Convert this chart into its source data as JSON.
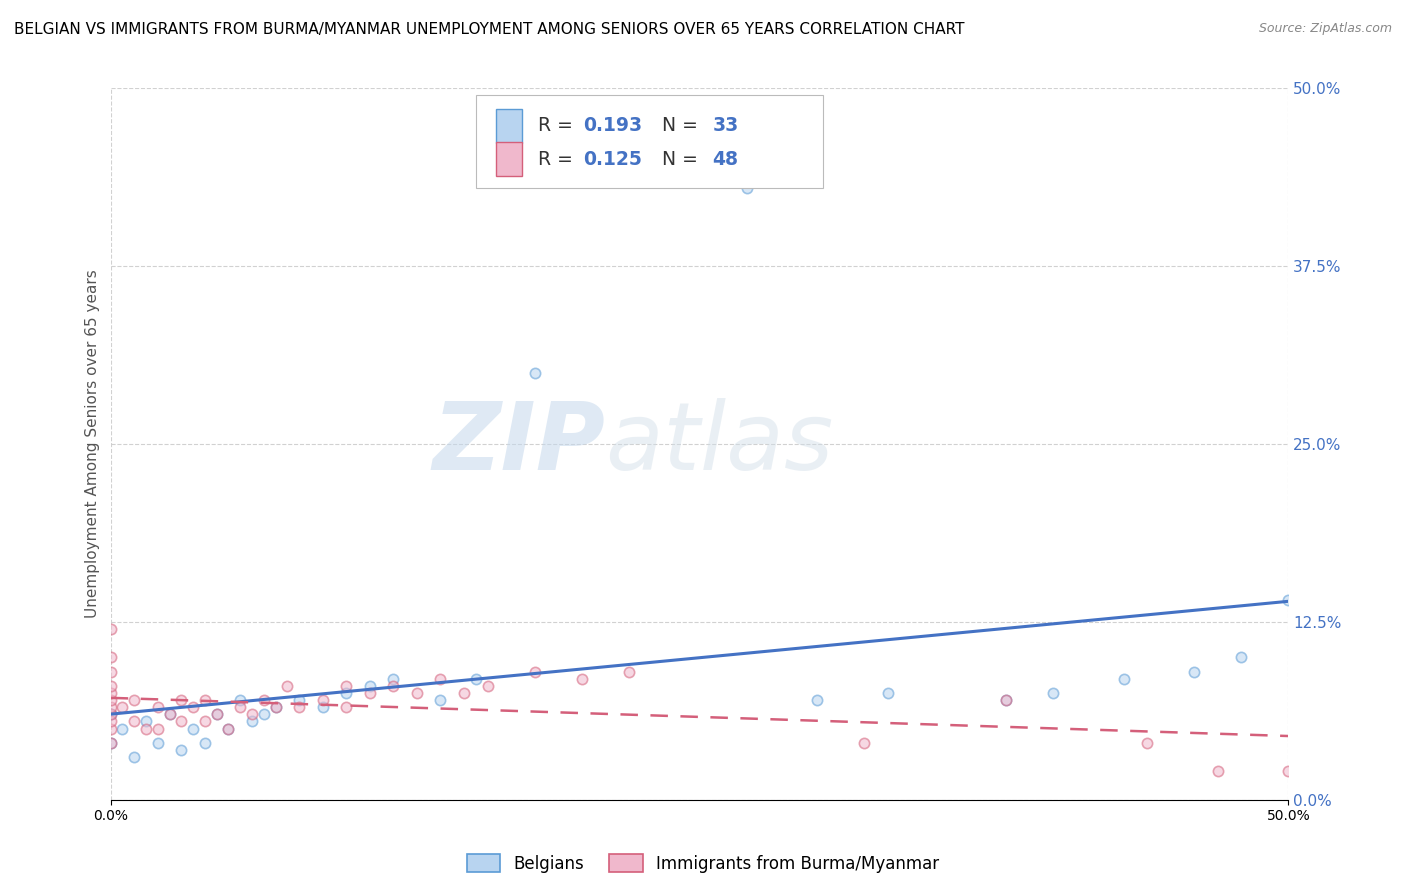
{
  "title": "BELGIAN VS IMMIGRANTS FROM BURMA/MYANMAR UNEMPLOYMENT AMONG SENIORS OVER 65 YEARS CORRELATION CHART",
  "source": "Source: ZipAtlas.com",
  "ylabel": "Unemployment Among Seniors over 65 years",
  "xlim": [
    0.0,
    0.5
  ],
  "ylim": [
    0.0,
    0.5
  ],
  "ytick_values": [
    0.0,
    0.125,
    0.25,
    0.375,
    0.5
  ],
  "ytick_labels": [
    "0.0%",
    "12.5%",
    "25.0%",
    "37.5%",
    "50.0%"
  ],
  "xtick_values": [
    0.0,
    0.5
  ],
  "xtick_labels": [
    "0.0%",
    "50.0%"
  ],
  "watermark_zip": "ZIP",
  "watermark_atlas": "atlas",
  "legend_belgians_label": "Belgians",
  "legend_immigrants_label": "Immigrants from Burma/Myanmar",
  "r_belgians": 0.193,
  "n_belgians": 33,
  "r_immigrants": 0.125,
  "n_immigrants": 48,
  "color_belgians_fill": "#b8d4f0",
  "color_belgians_edge": "#5b9bd5",
  "color_immigrants_fill": "#f0b8cc",
  "color_immigrants_edge": "#d45f7a",
  "color_line_belgians": "#4472c4",
  "color_line_immigrants": "#d45f7a",
  "belgians_x": [
    0.0,
    0.0,
    0.005,
    0.01,
    0.015,
    0.02,
    0.025,
    0.03,
    0.035,
    0.04,
    0.045,
    0.05,
    0.055,
    0.06,
    0.065,
    0.07,
    0.08,
    0.09,
    0.1,
    0.11,
    0.12,
    0.14,
    0.155,
    0.18,
    0.27,
    0.3,
    0.33,
    0.38,
    0.4,
    0.43,
    0.46,
    0.48,
    0.5
  ],
  "belgians_y": [
    0.04,
    0.06,
    0.05,
    0.03,
    0.055,
    0.04,
    0.06,
    0.035,
    0.05,
    0.04,
    0.06,
    0.05,
    0.07,
    0.055,
    0.06,
    0.065,
    0.07,
    0.065,
    0.075,
    0.08,
    0.085,
    0.07,
    0.085,
    0.3,
    0.43,
    0.07,
    0.075,
    0.07,
    0.075,
    0.085,
    0.09,
    0.1,
    0.14
  ],
  "immigrants_x": [
    0.0,
    0.0,
    0.0,
    0.0,
    0.0,
    0.0,
    0.0,
    0.0,
    0.0,
    0.0,
    0.0,
    0.005,
    0.01,
    0.01,
    0.015,
    0.02,
    0.02,
    0.025,
    0.03,
    0.03,
    0.035,
    0.04,
    0.04,
    0.045,
    0.05,
    0.055,
    0.06,
    0.065,
    0.07,
    0.075,
    0.08,
    0.09,
    0.1,
    0.1,
    0.11,
    0.12,
    0.13,
    0.14,
    0.15,
    0.16,
    0.18,
    0.2,
    0.22,
    0.32,
    0.38,
    0.44,
    0.47,
    0.5
  ],
  "immigrants_y": [
    0.04,
    0.05,
    0.055,
    0.06,
    0.065,
    0.07,
    0.075,
    0.08,
    0.09,
    0.1,
    0.12,
    0.065,
    0.055,
    0.07,
    0.05,
    0.05,
    0.065,
    0.06,
    0.055,
    0.07,
    0.065,
    0.055,
    0.07,
    0.06,
    0.05,
    0.065,
    0.06,
    0.07,
    0.065,
    0.08,
    0.065,
    0.07,
    0.065,
    0.08,
    0.075,
    0.08,
    0.075,
    0.085,
    0.075,
    0.08,
    0.09,
    0.085,
    0.09,
    0.04,
    0.07,
    0.04,
    0.02,
    0.02
  ],
  "background_color": "#ffffff",
  "grid_color": "#cccccc",
  "title_fontsize": 11,
  "axis_fontsize": 10,
  "scatter_size": 55,
  "scatter_alpha": 0.55,
  "scatter_linewidth": 1.2
}
